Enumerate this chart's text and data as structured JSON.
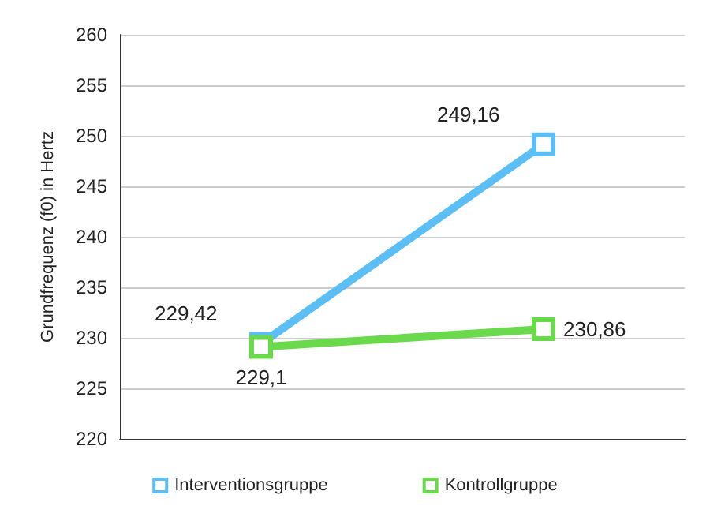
{
  "chart_data": {
    "type": "line",
    "ylabel": "Grundfrequenz (f0) in Hertz",
    "categories": [
      null,
      null
    ],
    "series": [
      {
        "name": "Interventionsgruppe",
        "color": "#5bbff5",
        "values": [
          229.42,
          249.16
        ],
        "value_labels": [
          "229,42",
          "249,16"
        ]
      },
      {
        "name": "Kontrollgruppe",
        "color": "#6ad94c",
        "values": [
          229.1,
          230.86
        ],
        "value_labels": [
          "229,1",
          "230,86"
        ]
      }
    ],
    "ylim": [
      220,
      260
    ],
    "yticks": [
      220,
      225,
      230,
      235,
      240,
      245,
      250,
      255,
      260
    ],
    "grid": "y",
    "legend": "bottom",
    "marker": "square",
    "line_style": "solid"
  }
}
